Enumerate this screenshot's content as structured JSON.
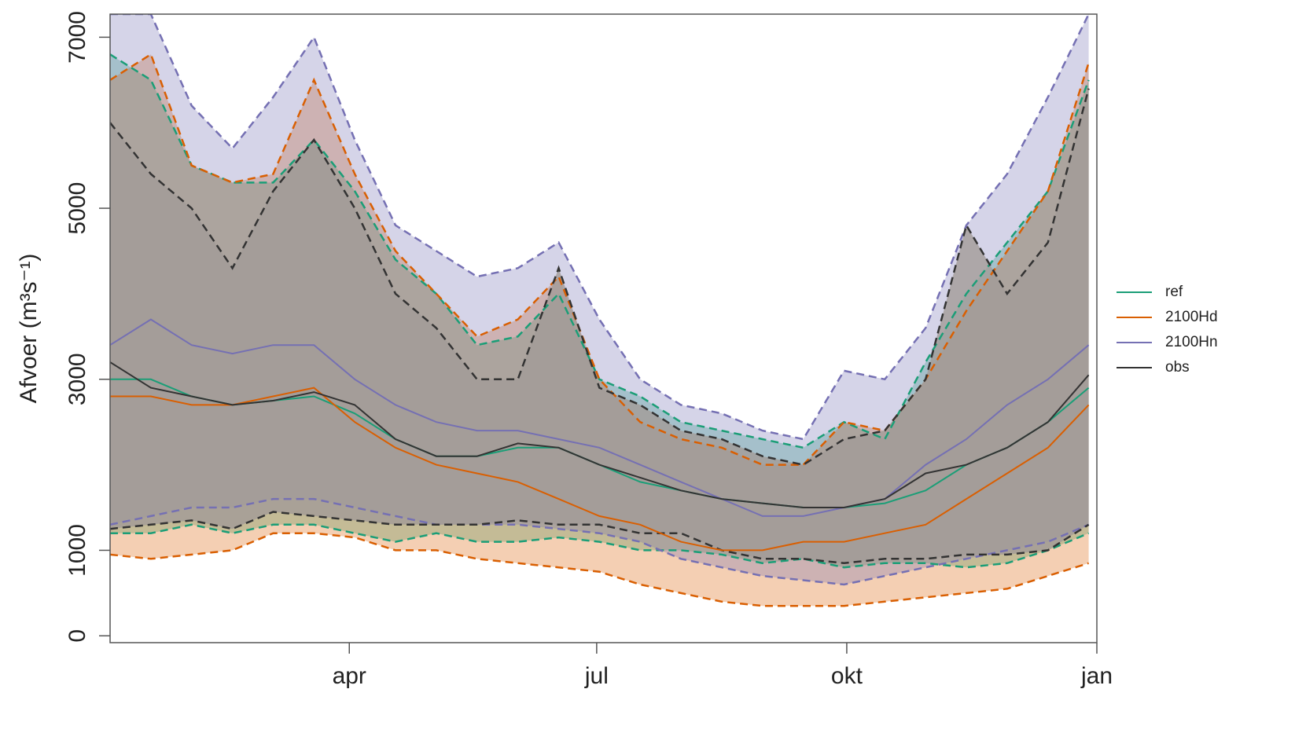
{
  "chart_data": {
    "type": "band-line",
    "y_label": "Afvoer (m³s⁻¹)",
    "x": [
      3,
      18,
      33,
      48,
      63,
      78,
      93,
      108,
      123,
      138,
      153,
      168,
      183,
      198,
      213,
      228,
      243,
      258,
      273,
      288,
      303,
      318,
      333,
      348,
      363
    ],
    "xlim": [
      3,
      366
    ],
    "xticks": [
      {
        "value": 91,
        "label": "apr"
      },
      {
        "value": 182,
        "label": "jul"
      },
      {
        "value": 274,
        "label": "okt"
      },
      {
        "value": 366,
        "label": "jan"
      }
    ],
    "ylim": [
      -80,
      7270
    ],
    "yticks": [
      0,
      1000,
      3000,
      5000,
      7000
    ],
    "legend": "right",
    "series": [
      {
        "name": "ref",
        "color": "#1b9e77",
        "values": [
          3000,
          3000,
          2800,
          2700,
          2750,
          2800,
          2600,
          2300,
          2100,
          2100,
          2200,
          2200,
          2000,
          1800,
          1700,
          1600,
          1550,
          1500,
          1500,
          1550,
          1700,
          2000,
          2200,
          2500,
          2900
        ],
        "upper": [
          6800,
          6500,
          5500,
          5300,
          5300,
          5800,
          5200,
          4400,
          4000,
          3400,
          3500,
          4000,
          3000,
          2800,
          2500,
          2400,
          2300,
          2200,
          2500,
          2300,
          3200,
          4000,
          4600,
          5200,
          6500
        ],
        "lower": [
          1200,
          1200,
          1300,
          1200,
          1300,
          1300,
          1200,
          1100,
          1200,
          1100,
          1100,
          1150,
          1100,
          1000,
          1000,
          950,
          850,
          900,
          800,
          850,
          850,
          800,
          850,
          1000,
          1200
        ]
      },
      {
        "name": "2100Hd",
        "color": "#d95f02",
        "values": [
          2800,
          2800,
          2700,
          2700,
          2800,
          2900,
          2500,
          2200,
          2000,
          1900,
          1800,
          1600,
          1400,
          1300,
          1100,
          1000,
          1000,
          1100,
          1100,
          1200,
          1300,
          1600,
          1900,
          2200,
          2700
        ],
        "upper": [
          6500,
          6800,
          5500,
          5300,
          5400,
          6500,
          5400,
          4500,
          4000,
          3500,
          3700,
          4200,
          3000,
          2500,
          2300,
          2200,
          2000,
          2000,
          2500,
          2400,
          3000,
          3800,
          4500,
          5200,
          6700
        ],
        "lower": [
          950,
          900,
          950,
          1000,
          1200,
          1200,
          1150,
          1000,
          1000,
          900,
          850,
          800,
          750,
          600,
          500,
          400,
          350,
          350,
          350,
          400,
          450,
          500,
          550,
          700,
          850
        ]
      },
      {
        "name": "2100Hn",
        "color": "#7570b3",
        "values": [
          3400,
          3700,
          3400,
          3300,
          3400,
          3400,
          3000,
          2700,
          2500,
          2400,
          2400,
          2300,
          2200,
          2000,
          1800,
          1600,
          1400,
          1400,
          1500,
          1600,
          2000,
          2300,
          2700,
          3000,
          3400
        ],
        "upper": [
          7270,
          7270,
          6200,
          5700,
          6300,
          7000,
          5800,
          4800,
          4500,
          4200,
          4300,
          4600,
          3700,
          3000,
          2700,
          2600,
          2400,
          2300,
          3100,
          3000,
          3600,
          4800,
          5400,
          6300,
          7270
        ],
        "lower": [
          1300,
          1400,
          1500,
          1500,
          1600,
          1600,
          1500,
          1400,
          1300,
          1300,
          1300,
          1250,
          1200,
          1100,
          900,
          800,
          700,
          650,
          600,
          700,
          800,
          900,
          1000,
          1100,
          1300
        ]
      },
      {
        "name": "obs",
        "color": "#333333",
        "values": [
          3200,
          2900,
          2800,
          2700,
          2750,
          2850,
          2700,
          2300,
          2100,
          2100,
          2250,
          2200,
          2000,
          1850,
          1700,
          1600,
          1550,
          1500,
          1500,
          1600,
          1900,
          2000,
          2200,
          2500,
          3050
        ],
        "upper": [
          6000,
          5400,
          5000,
          4300,
          5200,
          5800,
          5000,
          4000,
          3600,
          3000,
          3000,
          4300,
          2900,
          2700,
          2400,
          2300,
          2100,
          2000,
          2300,
          2400,
          3000,
          4800,
          4000,
          4600,
          6400
        ],
        "lower": [
          1250,
          1300,
          1350,
          1250,
          1450,
          1400,
          1350,
          1300,
          1300,
          1300,
          1350,
          1300,
          1300,
          1200,
          1200,
          1000,
          900,
          900,
          850,
          900,
          900,
          950,
          950,
          1000,
          1300
        ]
      }
    ]
  }
}
